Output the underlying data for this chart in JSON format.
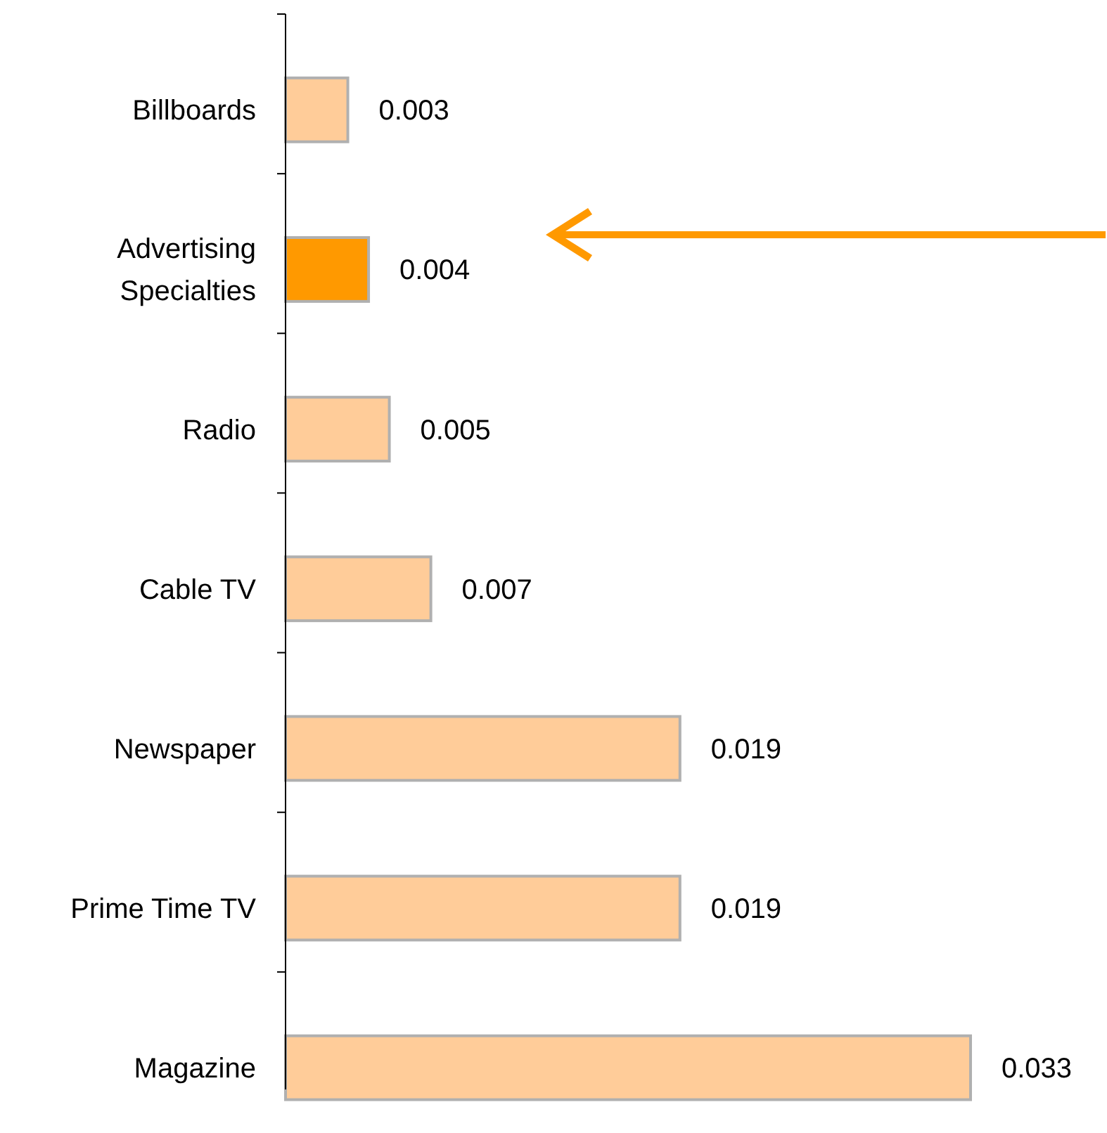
{
  "chart_data": {
    "type": "bar",
    "orientation": "horizontal",
    "categories": [
      "Billboards",
      "Advertising Specialties",
      "Radio",
      "Cable TV",
      "Newspaper",
      "Prime Time TV",
      "Magazine"
    ],
    "values": [
      0.003,
      0.004,
      0.005,
      0.007,
      0.019,
      0.019,
      0.033
    ],
    "colors": [
      "#ffcc99",
      "#ff9900",
      "#ffcc99",
      "#ffcc99",
      "#ffcc99",
      "#ffcc99",
      "#ffcc99"
    ],
    "data_labels": true
  }
}
